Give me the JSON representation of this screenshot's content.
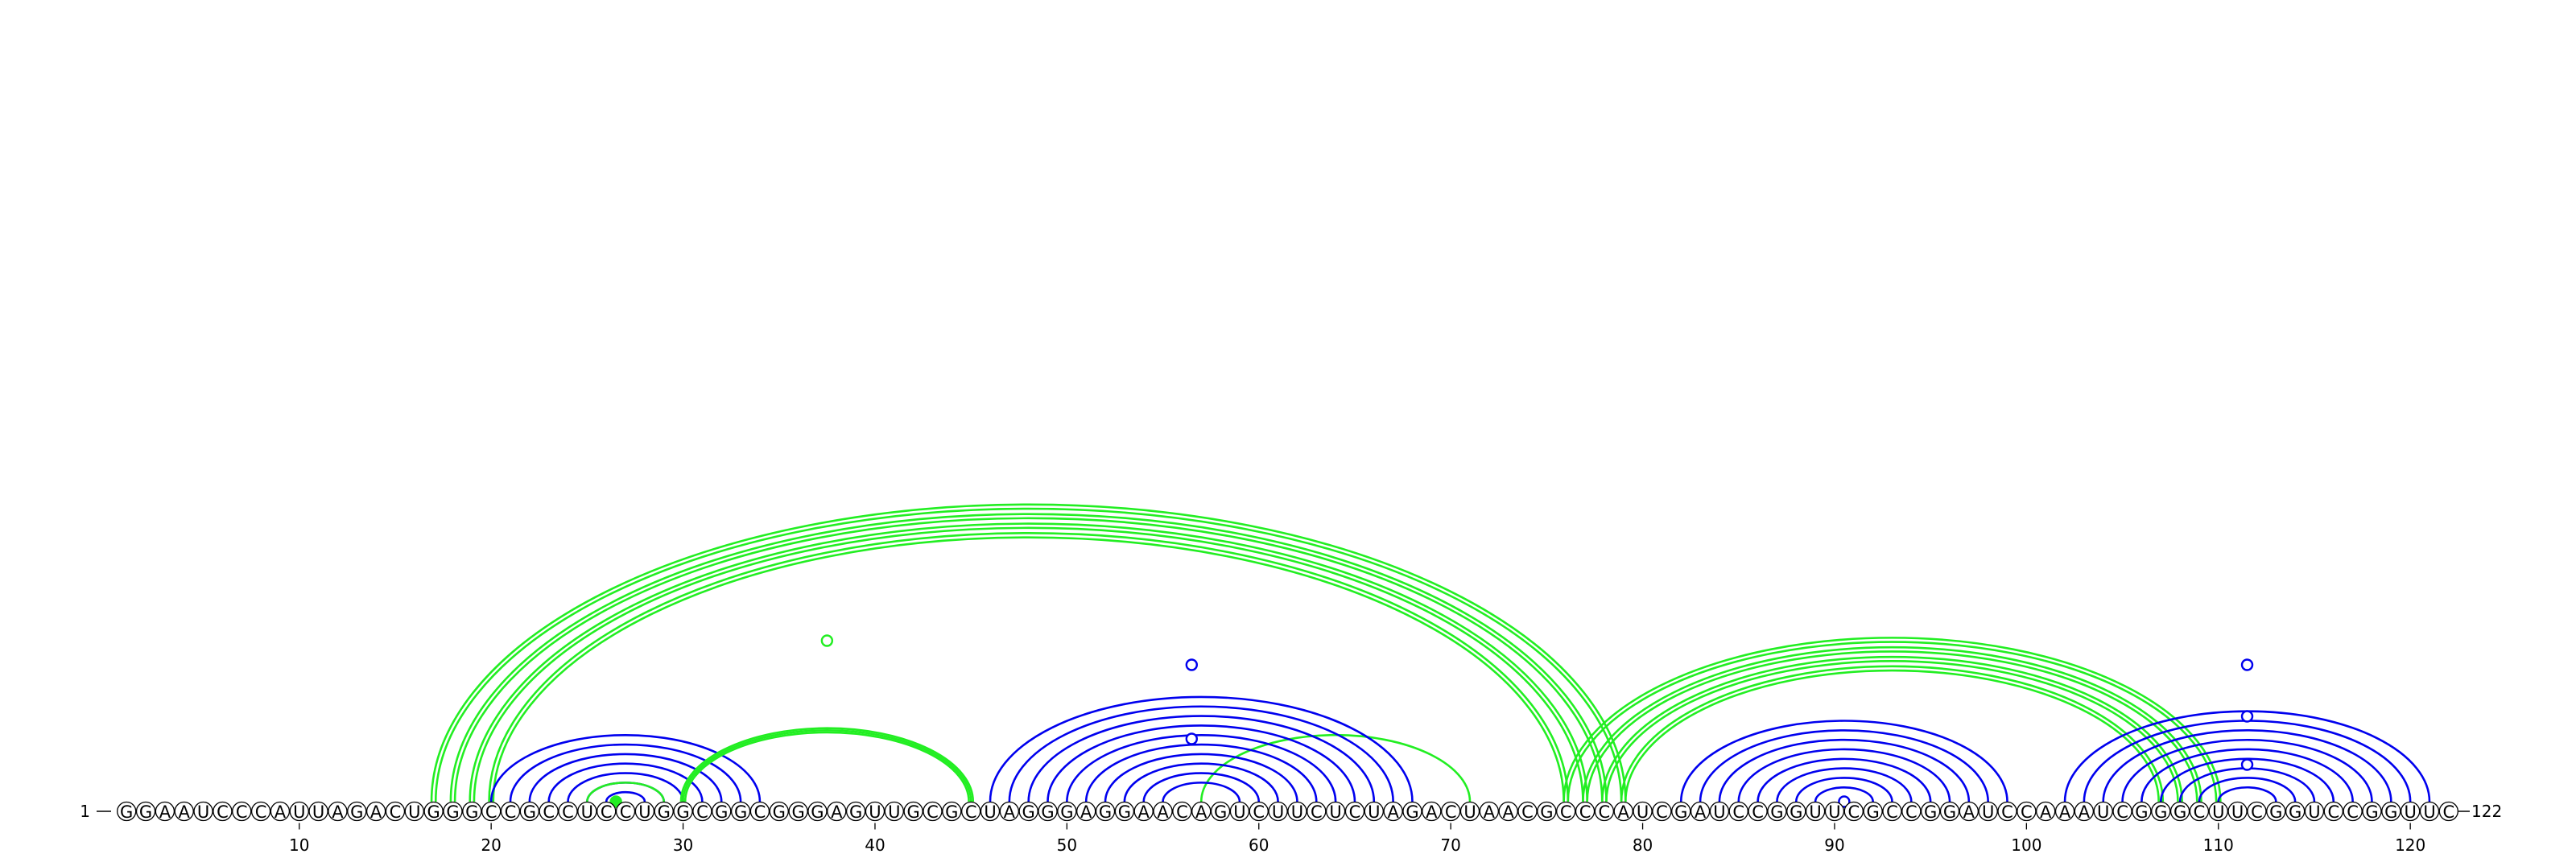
{
  "sequence": "GGAAUCCCAUUAGACUGGGCCGCCUCCUGGCGGCGGGAGUUGCGCUAGGGAGGAACAGUCUUCUCUAGACUAACGCCCAUCGAUCCGGUUCGCCGGAUCCAAAUCGGGCUUCGGUCCGGUUC",
  "start_label": "1",
  "end_label": "122",
  "tick_positions": [
    10,
    20,
    30,
    40,
    50,
    60,
    70,
    80,
    90,
    100,
    110,
    120
  ],
  "colors": {
    "blue": "#0000ee",
    "green": "#22ee22",
    "line": "#000000"
  },
  "arc_groups": [
    {
      "color": "green",
      "style": "double",
      "pairs": [
        [
          17,
          79
        ],
        [
          18,
          78
        ],
        [
          19,
          77
        ],
        [
          20,
          76
        ]
      ]
    },
    {
      "color": "blue",
      "style": "single",
      "pairs": [
        [
          20,
          34
        ],
        [
          21,
          33
        ],
        [
          22,
          32
        ],
        [
          23,
          31
        ],
        [
          24,
          30
        ],
        [
          25,
          29
        ],
        [
          26,
          28
        ]
      ]
    },
    {
      "color": "green",
      "style": "single",
      "pairs": [
        [
          25,
          29
        ],
        [
          30,
          45
        ],
        [
          57,
          71
        ]
      ]
    },
    {
      "color": "green",
      "style": "double",
      "pairs": [
        [
          30,
          45
        ]
      ]
    },
    {
      "color": "blue",
      "style": "single",
      "pairs": [
        [
          46,
          68
        ],
        [
          47,
          67
        ],
        [
          48,
          66
        ],
        [
          49,
          65
        ],
        [
          50,
          64
        ],
        [
          51,
          63
        ],
        [
          52,
          62
        ],
        [
          53,
          61
        ],
        [
          54,
          60
        ],
        [
          55,
          59
        ]
      ]
    },
    {
      "color": "green",
      "style": "double",
      "pairs": [
        [
          76,
          110
        ],
        [
          77,
          109
        ],
        [
          78,
          108
        ],
        [
          79,
          107
        ]
      ]
    },
    {
      "color": "blue",
      "style": "single",
      "pairs": [
        [
          82,
          99
        ],
        [
          83,
          98
        ],
        [
          84,
          97
        ],
        [
          85,
          96
        ],
        [
          86,
          95
        ],
        [
          87,
          94
        ],
        [
          88,
          93
        ],
        [
          89,
          92
        ]
      ]
    },
    {
      "color": "blue",
      "style": "single",
      "pairs": [
        [
          102,
          121
        ],
        [
          103,
          120
        ],
        [
          104,
          119
        ],
        [
          105,
          118
        ],
        [
          106,
          117
        ],
        [
          107,
          116
        ],
        [
          108,
          115
        ],
        [
          109,
          114
        ],
        [
          110,
          113
        ]
      ]
    }
  ],
  "markers": [
    {
      "between": [
        26,
        27
      ],
      "height": 0,
      "color": "green",
      "filled": true
    },
    {
      "between": [
        37,
        38
      ],
      "height": 100,
      "color": "green",
      "filled": false
    },
    {
      "between": [
        56,
        57
      ],
      "height": 85,
      "color": "blue",
      "filled": false
    },
    {
      "between": [
        56,
        57
      ],
      "height": 39,
      "color": "blue",
      "filled": false
    },
    {
      "between": [
        90,
        91
      ],
      "height": 0,
      "color": "blue",
      "filled": false
    },
    {
      "between": [
        111,
        112
      ],
      "height": 85,
      "color": "blue",
      "filled": false
    },
    {
      "between": [
        111,
        112
      ],
      "height": 53,
      "color": "blue",
      "filled": false
    },
    {
      "between": [
        111,
        112
      ],
      "height": 23,
      "color": "blue",
      "filled": false
    }
  ]
}
